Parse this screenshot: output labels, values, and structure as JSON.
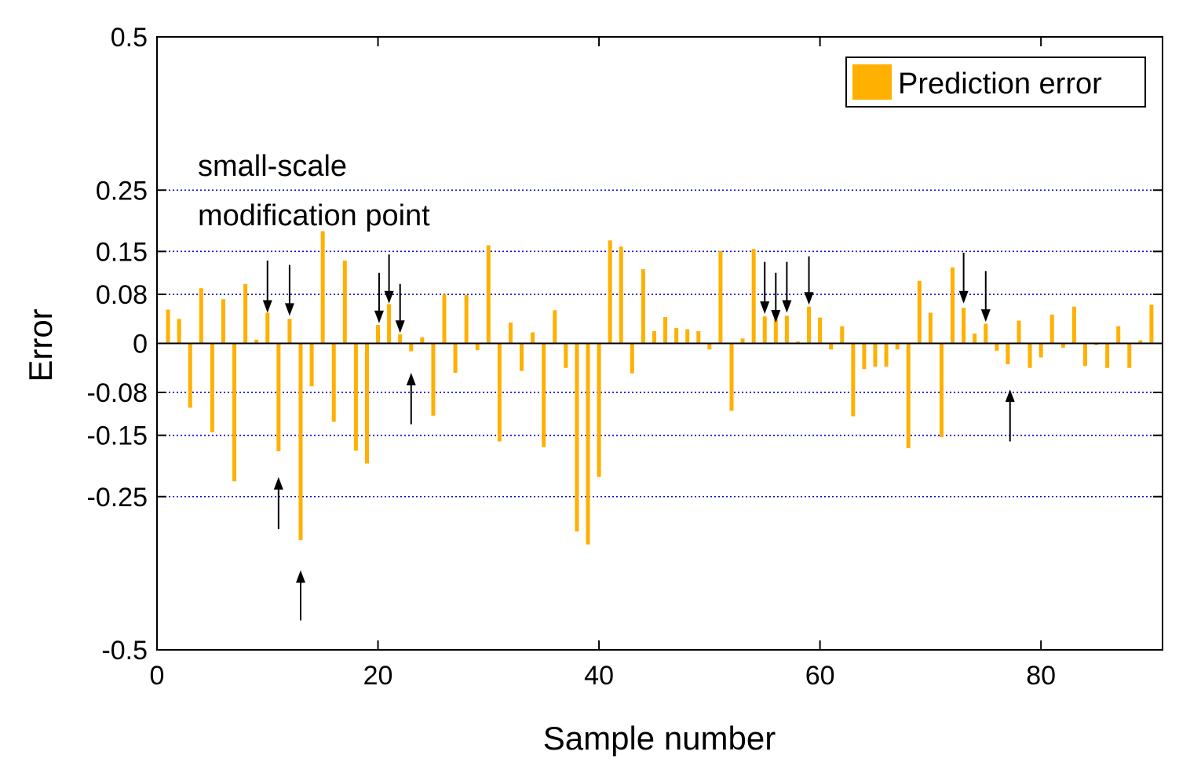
{
  "chart_data": {
    "type": "bar",
    "title": "",
    "xlabel": "Sample number",
    "ylabel": "Error",
    "xlim": [
      0,
      91
    ],
    "ylim": [
      -0.5,
      0.5
    ],
    "xticks": [
      0,
      20,
      40,
      60,
      80
    ],
    "xtick_labels": [
      "0",
      "20",
      "40",
      "60",
      "80"
    ],
    "yticks": [
      -0.5,
      -0.25,
      -0.15,
      -0.08,
      0,
      0.08,
      0.15,
      0.25,
      0.5
    ],
    "ytick_labels": [
      "-0.5",
      "-0.25",
      "-0.15",
      "-0.08",
      "0",
      "0.08",
      "0.15",
      "0.25",
      "0.5"
    ],
    "gridlines_y": [
      -0.25,
      -0.15,
      -0.08,
      0.08,
      0.15,
      0.25
    ],
    "series": [
      {
        "name": "Prediction error",
        "color": "#FFB000",
        "x": [
          1,
          2,
          3,
          4,
          5,
          6,
          7,
          8,
          9,
          10,
          11,
          12,
          13,
          14,
          15,
          16,
          17,
          18,
          19,
          20,
          21,
          22,
          23,
          24,
          25,
          26,
          27,
          28,
          29,
          30,
          31,
          32,
          33,
          34,
          35,
          36,
          37,
          38,
          39,
          40,
          41,
          42,
          43,
          44,
          45,
          46,
          47,
          48,
          49,
          50,
          51,
          52,
          53,
          54,
          55,
          56,
          57,
          58,
          59,
          60,
          61,
          62,
          63,
          64,
          65,
          66,
          67,
          68,
          69,
          70,
          71,
          72,
          73,
          74,
          75,
          76,
          77,
          78,
          79,
          80,
          81,
          82,
          83,
          84,
          85,
          86,
          87,
          88,
          89,
          90
        ],
        "values": [
          0.055,
          0.04,
          -0.105,
          0.09,
          -0.145,
          0.072,
          -0.225,
          0.097,
          0.006,
          0.05,
          -0.176,
          0.04,
          -0.321,
          -0.07,
          0.183,
          -0.128,
          0.135,
          -0.175,
          -0.196,
          0.03,
          0.064,
          0.015,
          -0.013,
          0.01,
          -0.118,
          0.08,
          -0.048,
          0.079,
          -0.011,
          0.16,
          -0.16,
          0.034,
          -0.045,
          0.018,
          -0.169,
          0.054,
          -0.04,
          -0.307,
          -0.328,
          -0.218,
          0.168,
          0.158,
          -0.049,
          0.121,
          0.02,
          0.043,
          0.025,
          0.023,
          0.02,
          -0.01,
          0.151,
          -0.11,
          0.008,
          0.154,
          0.044,
          0.04,
          0.045,
          0.003,
          0.06,
          0.042,
          -0.01,
          0.028,
          -0.119,
          -0.042,
          -0.038,
          -0.038,
          -0.01,
          -0.171,
          0.102,
          0.05,
          -0.153,
          0.124,
          0.058,
          0.016,
          0.032,
          -0.012,
          -0.034,
          0.037,
          -0.04,
          -0.023,
          0.047,
          -0.007,
          0.06,
          -0.037,
          -0.003,
          -0.04,
          0.028,
          -0.04,
          0.005,
          0.063
        ]
      }
    ],
    "annotation_lines": [
      "small-scale",
      "modification point"
    ],
    "annotation_arrows": [
      {
        "x": 10,
        "direction": "down",
        "from": 0.135,
        "to": 0.05
      },
      {
        "x": 12,
        "direction": "down",
        "from": 0.128,
        "to": 0.045
      },
      {
        "x": 20.1,
        "direction": "down",
        "from": 0.115,
        "to": 0.033
      },
      {
        "x": 21,
        "direction": "down",
        "from": 0.145,
        "to": 0.065
      },
      {
        "x": 22,
        "direction": "down",
        "from": 0.097,
        "to": 0.017
      },
      {
        "x": 55,
        "direction": "down",
        "from": 0.133,
        "to": 0.048
      },
      {
        "x": 56,
        "direction": "down",
        "from": 0.115,
        "to": 0.034
      },
      {
        "x": 57,
        "direction": "down",
        "from": 0.133,
        "to": 0.05
      },
      {
        "x": 59,
        "direction": "down",
        "from": 0.142,
        "to": 0.063
      },
      {
        "x": 73,
        "direction": "down",
        "from": 0.148,
        "to": 0.065
      },
      {
        "x": 75,
        "direction": "down",
        "from": 0.118,
        "to": 0.035
      },
      {
        "x": 11,
        "direction": "up",
        "from": -0.303,
        "to": -0.218
      },
      {
        "x": 13,
        "direction": "up",
        "from": -0.452,
        "to": -0.37
      },
      {
        "x": 23,
        "direction": "up",
        "from": -0.132,
        "to": -0.048
      },
      {
        "x": 77.2,
        "direction": "up",
        "from": -0.16,
        "to": -0.075
      }
    ],
    "legend": {
      "position": "top-right",
      "entries": [
        "Prediction error"
      ]
    }
  }
}
